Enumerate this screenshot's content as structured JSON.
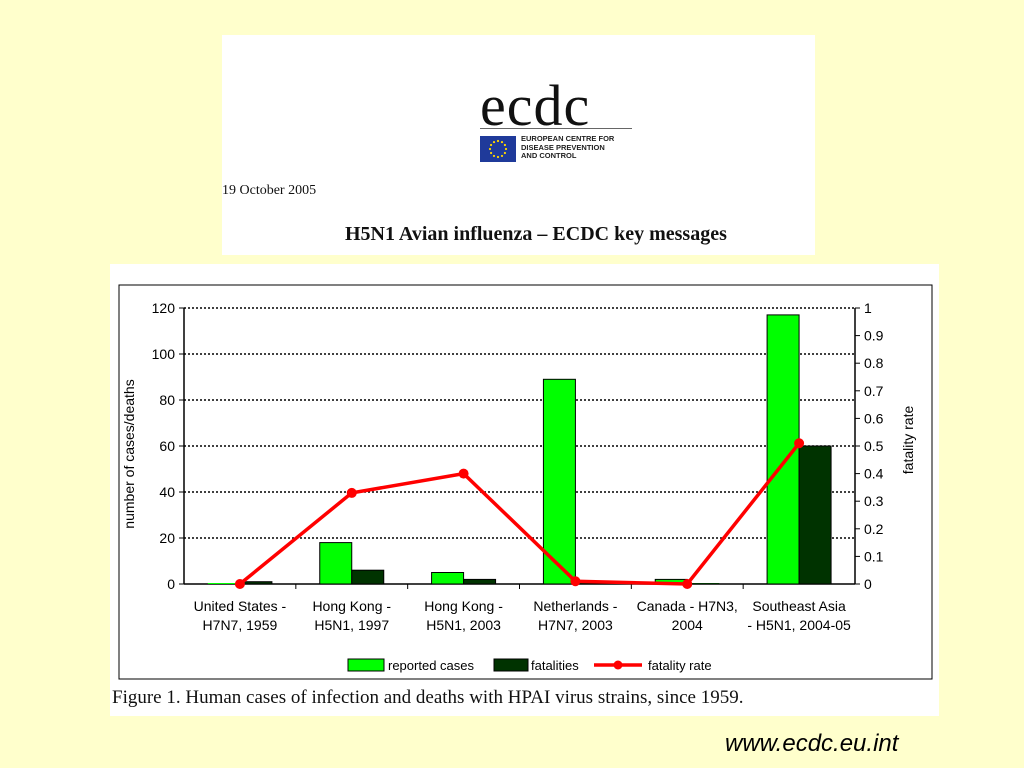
{
  "header": {
    "logo_text": "ecdc",
    "org_name": "EUROPEAN CENTRE FOR\nDISEASE PREVENTION\nAND CONTROL",
    "date": "19 October 2005",
    "title": "H5N1 Avian influenza – ECDC key messages"
  },
  "colors": {
    "background": "#ffffcc",
    "reported_cases": "#00ff00",
    "fatalities": "#003300",
    "fatality_rate": "#ff0000"
  },
  "chart_data": {
    "type": "bar",
    "categories": [
      [
        "United States -",
        "H7N7, 1959"
      ],
      [
        "Hong Kong -",
        "H5N1, 1997"
      ],
      [
        "Hong Kong -",
        "H5N1, 2003"
      ],
      [
        "Netherlands -",
        "H7N7, 2003"
      ],
      [
        "Canada - H7N3,",
        "2004"
      ],
      [
        "Southeast Asia",
        "- H5N1, 2004-05"
      ]
    ],
    "series": [
      {
        "name": "reported cases",
        "kind": "bar",
        "axis": "left",
        "values": [
          0,
          18,
          5,
          89,
          2,
          117
        ]
      },
      {
        "name": "fatalities",
        "kind": "bar",
        "axis": "left",
        "values": [
          1,
          6,
          2,
          1,
          0,
          60
        ]
      },
      {
        "name": "fatality rate",
        "kind": "line",
        "axis": "right",
        "values": [
          0,
          0.33,
          0.4,
          0.01,
          0,
          0.51
        ]
      }
    ],
    "ylabel": "number of cases/deaths",
    "y2label": "fatality rate",
    "ylim": [
      0,
      120
    ],
    "y2lim": [
      0,
      1
    ],
    "yticks": [
      "0",
      "20",
      "40",
      "60",
      "80",
      "100",
      "120"
    ],
    "y2ticks": [
      "0",
      "0.1",
      "0.2",
      "0.3",
      "0.4",
      "0.5",
      "0.6",
      "0.7",
      "0.8",
      "0.9",
      "1"
    ],
    "grid": "horizontal dotted",
    "legend_position": "bottom"
  },
  "caption": "Figure 1. Human cases of infection and deaths with HPAI virus strains, since 1959.",
  "footer": {
    "url": "www.ecdc.eu.int"
  }
}
